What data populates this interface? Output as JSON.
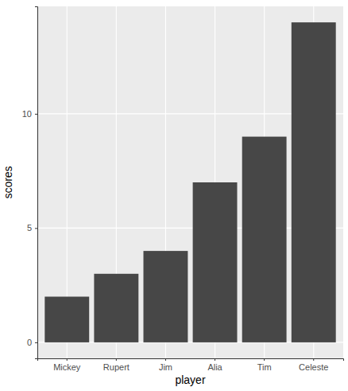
{
  "chart_data": {
    "type": "bar",
    "x_label": "player",
    "y_label": "scores",
    "categories": [
      "Mickey",
      "Rupert",
      "Jim",
      "Alia",
      "Tim",
      "Celeste"
    ],
    "values": [
      2,
      3,
      4,
      7,
      9,
      14
    ],
    "color": "#474747",
    "ylim": [
      -0.7,
      14.7
    ],
    "yticks": [
      0,
      5,
      10
    ],
    "grid": true
  }
}
